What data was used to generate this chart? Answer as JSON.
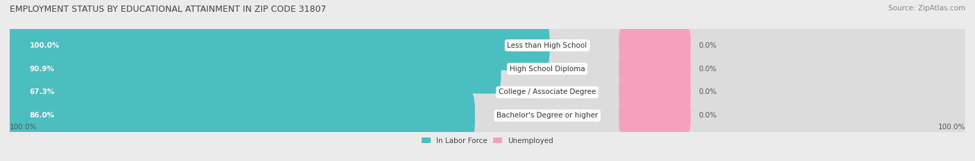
{
  "title": "EMPLOYMENT STATUS BY EDUCATIONAL ATTAINMENT IN ZIP CODE 31807",
  "source": "Source: ZipAtlas.com",
  "categories": [
    "Less than High School",
    "High School Diploma",
    "College / Associate Degree",
    "Bachelor's Degree or higher"
  ],
  "labor_force": [
    100.0,
    90.9,
    67.3,
    86.0
  ],
  "unemployed": [
    0.0,
    0.0,
    0.0,
    0.0
  ],
  "bar_color_labor": "#4bbfbf",
  "bar_color_unemployed": "#f5a0bc",
  "bg_color": "#ebebeb",
  "bar_bg_color": "#dcdcdc",
  "title_fontsize": 9.0,
  "source_fontsize": 7.5,
  "label_fontsize": 7.5,
  "cat_label_fontsize": 7.5,
  "axis_label_left": "100.0%",
  "axis_label_right": "100.0%",
  "legend_labor": "In Labor Force",
  "legend_unemployed": "Unemployed",
  "total": 100.0,
  "pink_bar_width": 8.0,
  "pink_bar_gap": 1.0
}
